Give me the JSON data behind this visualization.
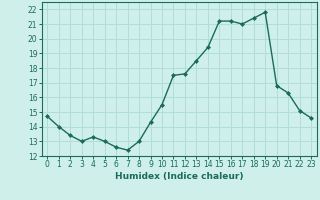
{
  "x": [
    0,
    1,
    2,
    3,
    4,
    5,
    6,
    7,
    8,
    9,
    10,
    11,
    12,
    13,
    14,
    15,
    16,
    17,
    18,
    19,
    20,
    21,
    22,
    23
  ],
  "y": [
    14.7,
    14.0,
    13.4,
    13.0,
    13.3,
    13.0,
    12.6,
    12.4,
    13.0,
    14.3,
    15.5,
    17.5,
    17.6,
    18.5,
    19.4,
    21.2,
    21.2,
    21.0,
    21.4,
    21.8,
    16.8,
    16.3,
    15.1,
    14.6
  ],
  "line_color": "#1a6b5a",
  "marker": "D",
  "markersize": 2.0,
  "linewidth": 1.0,
  "xlabel": "Humidex (Indice chaleur)",
  "xlim": [
    -0.5,
    23.5
  ],
  "ylim": [
    12,
    22.5
  ],
  "yticks": [
    12,
    13,
    14,
    15,
    16,
    17,
    18,
    19,
    20,
    21,
    22
  ],
  "xticks": [
    0,
    1,
    2,
    3,
    4,
    5,
    6,
    7,
    8,
    9,
    10,
    11,
    12,
    13,
    14,
    15,
    16,
    17,
    18,
    19,
    20,
    21,
    22,
    23
  ],
  "bg_color": "#cff0ea",
  "grid_color": "#b0ddd6",
  "tick_color": "#1a6b5a",
  "label_color": "#1a6b5a",
  "axis_fontsize": 6.5,
  "tick_fontsize": 5.5
}
